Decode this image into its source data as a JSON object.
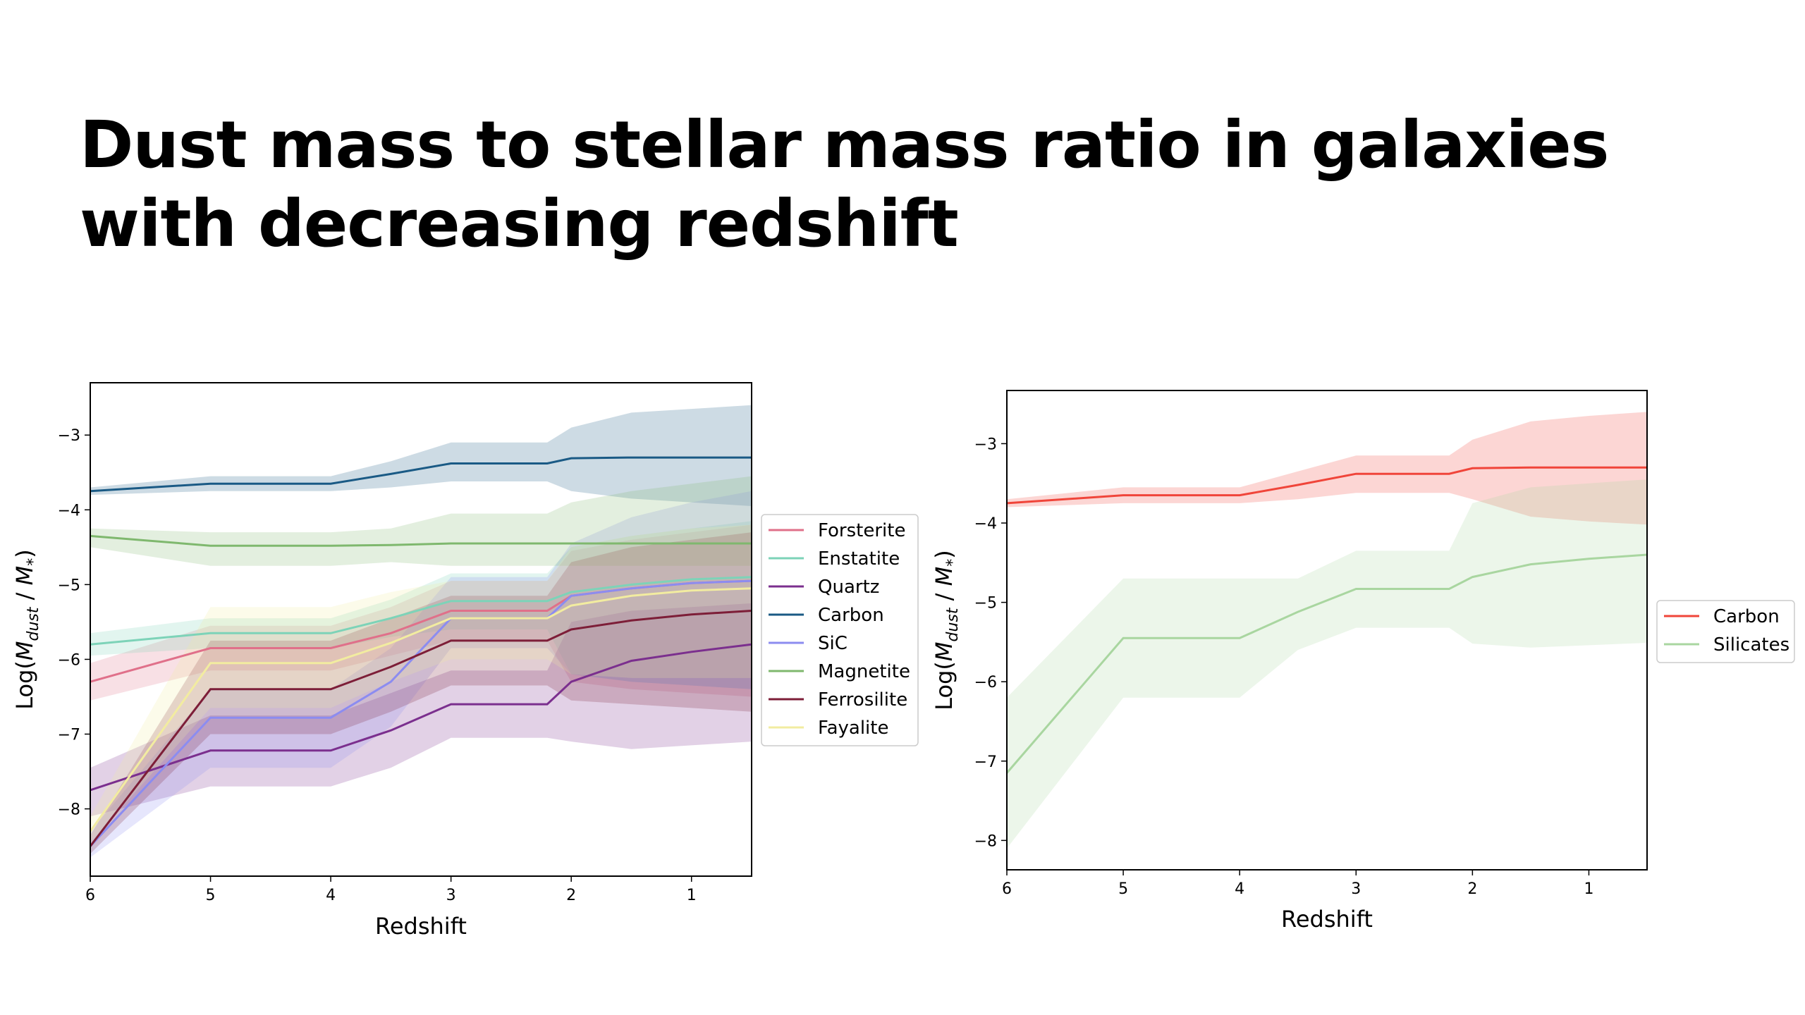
{
  "slide": {
    "title": "Dust mass to stellar mass ratio in galaxies with decreasing redshift"
  },
  "chart_data": [
    {
      "type": "line",
      "xlabel": "Redshift",
      "ylabel": "Log(M_dust / M_*)",
      "ylabel_main": "Log(",
      "ylabel_m1": "M",
      "ylabel_sub1": "dust",
      "ylabel_mid": " / ",
      "ylabel_m2": "M",
      "ylabel_sub2": "*",
      "ylabel_end": ")",
      "xlim": [
        6,
        0.5
      ],
      "ylim": [
        -8.9,
        -2.3
      ],
      "xticks": [
        6,
        5,
        4,
        3,
        2,
        1
      ],
      "yticks": [
        -3,
        -4,
        -5,
        -6,
        -7,
        -8
      ],
      "tick_labels_x": [
        "6",
        "5",
        "4",
        "3",
        "2",
        "1"
      ],
      "tick_labels_y": [
        "−3",
        "−4",
        "−5",
        "−6",
        "−7",
        "−8"
      ],
      "legend_position": "outside-right",
      "x": [
        6,
        5,
        4,
        3.5,
        3,
        2.2,
        2,
        1.5,
        1,
        0.5
      ],
      "series": [
        {
          "name": "Forsterite",
          "color": "#e0708a",
          "values": [
            -6.3,
            -5.85,
            -5.85,
            -5.65,
            -5.35,
            -5.35,
            -5.15,
            -5.05,
            -4.98,
            -4.95
          ],
          "band": [
            [
              -6.55,
              -6.05
            ],
            [
              -6.15,
              -5.55
            ],
            [
              -6.15,
              -5.55
            ],
            [
              -5.95,
              -5.3
            ],
            [
              -5.75,
              -4.95
            ],
            [
              -5.75,
              -4.95
            ],
            [
              -6.3,
              -4.55
            ],
            [
              -6.4,
              -4.4
            ],
            [
              -6.45,
              -4.3
            ],
            [
              -6.5,
              -4.2
            ]
          ]
        },
        {
          "name": "Enstatite",
          "color": "#7dd3b8",
          "values": [
            -5.8,
            -5.65,
            -5.65,
            -5.45,
            -5.22,
            -5.22,
            -5.1,
            -5.0,
            -4.93,
            -4.9
          ],
          "band": [
            [
              -5.95,
              -5.65
            ],
            [
              -5.85,
              -5.45
            ],
            [
              -5.85,
              -5.45
            ],
            [
              -5.7,
              -5.2
            ],
            [
              -5.6,
              -4.85
            ],
            [
              -5.6,
              -4.85
            ],
            [
              -6.2,
              -4.5
            ],
            [
              -6.3,
              -4.35
            ],
            [
              -6.35,
              -4.25
            ],
            [
              -6.4,
              -4.15
            ]
          ]
        },
        {
          "name": "Quartz",
          "color": "#7b2f8e",
          "values": [
            -7.75,
            -7.22,
            -7.22,
            -6.95,
            -6.6,
            -6.6,
            -6.3,
            -6.02,
            -5.9,
            -5.8
          ],
          "band": [
            [
              -8.1,
              -7.45
            ],
            [
              -7.7,
              -6.75
            ],
            [
              -7.7,
              -6.75
            ],
            [
              -7.45,
              -6.45
            ],
            [
              -7.05,
              -6.15
            ],
            [
              -7.05,
              -6.15
            ],
            [
              -7.1,
              -5.5
            ],
            [
              -7.2,
              -5.35
            ],
            [
              -7.15,
              -5.3
            ],
            [
              -7.1,
              -5.25
            ]
          ]
        },
        {
          "name": "Carbon",
          "color": "#1a5a85",
          "values": [
            -3.75,
            -3.65,
            -3.65,
            -3.52,
            -3.38,
            -3.38,
            -3.31,
            -3.3,
            -3.3,
            -3.3
          ],
          "band": [
            [
              -3.8,
              -3.7
            ],
            [
              -3.75,
              -3.55
            ],
            [
              -3.75,
              -3.55
            ],
            [
              -3.7,
              -3.35
            ],
            [
              -3.62,
              -3.1
            ],
            [
              -3.62,
              -3.1
            ],
            [
              -3.75,
              -2.9
            ],
            [
              -3.85,
              -2.7
            ],
            [
              -3.9,
              -2.65
            ],
            [
              -3.95,
              -2.6
            ]
          ]
        },
        {
          "name": "SiC",
          "color": "#8c8cf0",
          "values": [
            -8.5,
            -6.78,
            -6.78,
            -6.3,
            -5.45,
            -5.45,
            -5.15,
            -5.05,
            -4.98,
            -4.95
          ],
          "band": [
            [
              -8.65,
              -8.3
            ],
            [
              -7.45,
              -6.4
            ],
            [
              -7.45,
              -6.4
            ],
            [
              -6.9,
              -5.85
            ],
            [
              -5.85,
              -4.9
            ],
            [
              -5.85,
              -4.9
            ],
            [
              -6.2,
              -4.45
            ],
            [
              -6.3,
              -4.1
            ],
            [
              -6.35,
              -3.9
            ],
            [
              -6.4,
              -3.75
            ]
          ]
        },
        {
          "name": "Magnetite",
          "color": "#7fb86e",
          "values": [
            -4.35,
            -4.48,
            -4.48,
            -4.47,
            -4.45,
            -4.45,
            -4.45,
            -4.45,
            -4.45,
            -4.45
          ],
          "band": [
            [
              -4.5,
              -4.25
            ],
            [
              -4.75,
              -4.3
            ],
            [
              -4.75,
              -4.3
            ],
            [
              -4.7,
              -4.25
            ],
            [
              -4.75,
              -4.05
            ],
            [
              -4.75,
              -4.05
            ],
            [
              -4.75,
              -3.9
            ],
            [
              -4.75,
              -3.75
            ],
            [
              -4.75,
              -3.65
            ],
            [
              -4.75,
              -3.55
            ]
          ]
        },
        {
          "name": "Ferrosilite",
          "color": "#7d1e38",
          "values": [
            -8.5,
            -6.4,
            -6.4,
            -6.1,
            -5.75,
            -5.75,
            -5.6,
            -5.48,
            -5.4,
            -5.35
          ],
          "band": [
            [
              -8.6,
              -8.35
            ],
            [
              -7.0,
              -5.75
            ],
            [
              -7.0,
              -5.75
            ],
            [
              -6.7,
              -5.45
            ],
            [
              -6.35,
              -5.15
            ],
            [
              -6.35,
              -5.15
            ],
            [
              -6.55,
              -4.7
            ],
            [
              -6.6,
              -4.5
            ],
            [
              -6.65,
              -4.4
            ],
            [
              -6.7,
              -4.3
            ]
          ]
        },
        {
          "name": "Fayalite",
          "color": "#f2eca0",
          "values": [
            -8.3,
            -6.05,
            -6.05,
            -5.78,
            -5.45,
            -5.45,
            -5.28,
            -5.15,
            -5.08,
            -5.05
          ],
          "band": [
            [
              -8.45,
              -8.1
            ],
            [
              -6.65,
              -5.3
            ],
            [
              -6.65,
              -5.3
            ],
            [
              -6.3,
              -5.1
            ],
            [
              -6.0,
              -4.95
            ],
            [
              -6.0,
              -4.95
            ],
            [
              -6.2,
              -4.5
            ],
            [
              -6.25,
              -4.35
            ],
            [
              -6.25,
              -4.25
            ],
            [
              -6.25,
              -4.2
            ]
          ]
        }
      ]
    },
    {
      "type": "line",
      "xlabel": "Redshift",
      "ylabel": "Log(M_dust / M_*)",
      "ylabel_main": "Log(",
      "ylabel_m1": "M",
      "ylabel_sub1": "dust",
      "ylabel_mid": " / ",
      "ylabel_m2": "M",
      "ylabel_sub2": "*",
      "ylabel_end": ")",
      "xlim": [
        6,
        0.5
      ],
      "ylim": [
        -8.37,
        -2.33
      ],
      "xticks": [
        6,
        5,
        4,
        3,
        2,
        1
      ],
      "yticks": [
        -3,
        -4,
        -5,
        -6,
        -7,
        -8
      ],
      "tick_labels_x": [
        "6",
        "5",
        "4",
        "3",
        "2",
        "1"
      ],
      "tick_labels_y": [
        "−3",
        "−4",
        "−5",
        "−6",
        "−7",
        "−8"
      ],
      "legend_position": "outside-right",
      "x": [
        6,
        5,
        4,
        3.5,
        3,
        2.2,
        2,
        1.5,
        1,
        0.5
      ],
      "series": [
        {
          "name": "Carbon",
          "color": "#f0453a",
          "values": [
            -3.75,
            -3.65,
            -3.65,
            -3.52,
            -3.38,
            -3.38,
            -3.31,
            -3.3,
            -3.3,
            -3.3
          ],
          "band": [
            [
              -3.8,
              -3.7
            ],
            [
              -3.75,
              -3.55
            ],
            [
              -3.75,
              -3.55
            ],
            [
              -3.7,
              -3.35
            ],
            [
              -3.62,
              -3.15
            ],
            [
              -3.62,
              -3.15
            ],
            [
              -3.7,
              -2.95
            ],
            [
              -3.92,
              -2.72
            ],
            [
              -3.98,
              -2.65
            ],
            [
              -4.02,
              -2.6
            ]
          ]
        },
        {
          "name": "Silicates",
          "color": "#a9d6a0",
          "values": [
            -7.15,
            -5.45,
            -5.45,
            -5.12,
            -4.83,
            -4.83,
            -4.68,
            -4.52,
            -4.45,
            -4.4
          ],
          "band": [
            [
              -8.1,
              -6.2
            ],
            [
              -6.2,
              -4.7
            ],
            [
              -6.2,
              -4.7
            ],
            [
              -5.6,
              -4.7
            ],
            [
              -5.32,
              -4.35
            ],
            [
              -5.32,
              -4.35
            ],
            [
              -5.52,
              -3.75
            ],
            [
              -5.57,
              -3.55
            ],
            [
              -5.54,
              -3.5
            ],
            [
              -5.51,
              -3.45
            ]
          ]
        }
      ]
    }
  ]
}
